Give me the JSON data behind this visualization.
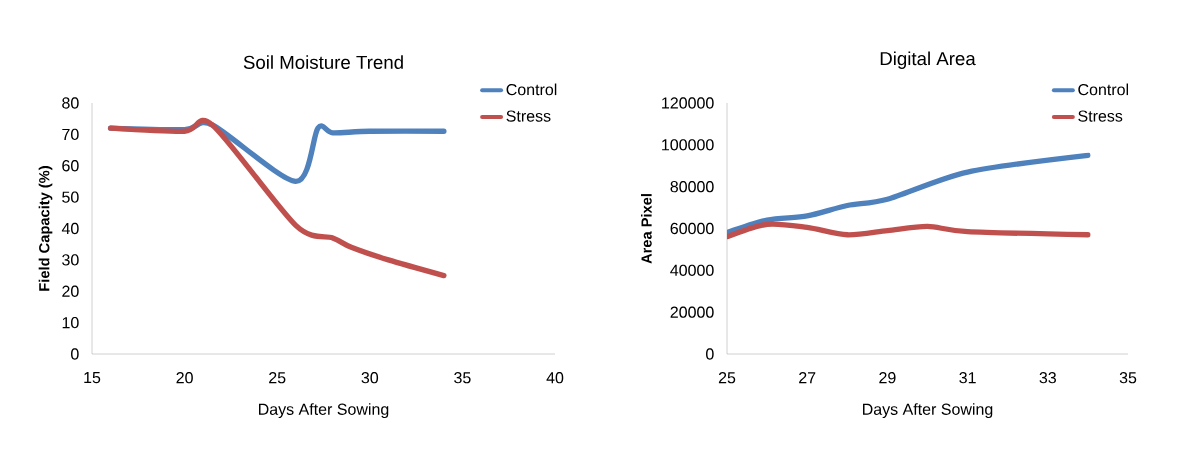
{
  "chart_data": [
    {
      "type": "line",
      "title": "Soil Moisture Trend",
      "xlabel": "Days After Sowing",
      "ylabel": "Field Capacity (%)",
      "xlim": [
        15,
        40
      ],
      "xticks": [
        15,
        20,
        25,
        30,
        35,
        40
      ],
      "ylim": [
        0,
        80
      ],
      "yticks": [
        0,
        10,
        20,
        30,
        40,
        50,
        60,
        70,
        80
      ],
      "grid": false,
      "legend": "top right",
      "marker": "none",
      "line_style": "solid",
      "series": [
        {
          "name": "Control",
          "color": "#4f81bd",
          "x": [
            16,
            20,
            21.5,
            26,
            27.2,
            28,
            30,
            34
          ],
          "values": [
            72,
            71.5,
            73,
            55,
            72,
            70.5,
            71,
            71
          ]
        },
        {
          "name": "Stress",
          "color": "#c0504d",
          "x": [
            16,
            20,
            21.5,
            26,
            28,
            29,
            31,
            34
          ],
          "values": [
            72,
            71,
            73,
            41,
            37,
            34,
            30,
            25
          ]
        }
      ]
    },
    {
      "type": "line",
      "title": "Digital Area",
      "xlabel": "Days After Sowing",
      "ylabel": "Area Pixel",
      "xlim": [
        25,
        35
      ],
      "xticks": [
        25,
        27,
        29,
        31,
        33,
        35
      ],
      "ylim": [
        0,
        120000
      ],
      "yticks": [
        0,
        20000,
        40000,
        60000,
        80000,
        100000,
        120000
      ],
      "grid": false,
      "legend": "top right",
      "marker": "none",
      "line_style": "solid",
      "series": [
        {
          "name": "Control",
          "color": "#4f81bd",
          "x": [
            25,
            26,
            27,
            28,
            29,
            31,
            34
          ],
          "values": [
            58000,
            64000,
            66000,
            71000,
            74000,
            87000,
            95000
          ]
        },
        {
          "name": "Stress",
          "color": "#c0504d",
          "x": [
            25,
            26,
            27,
            28,
            29,
            30,
            31,
            34
          ],
          "values": [
            56000,
            62000,
            60500,
            57000,
            59000,
            61000,
            58500,
            57000
          ]
        }
      ]
    }
  ]
}
